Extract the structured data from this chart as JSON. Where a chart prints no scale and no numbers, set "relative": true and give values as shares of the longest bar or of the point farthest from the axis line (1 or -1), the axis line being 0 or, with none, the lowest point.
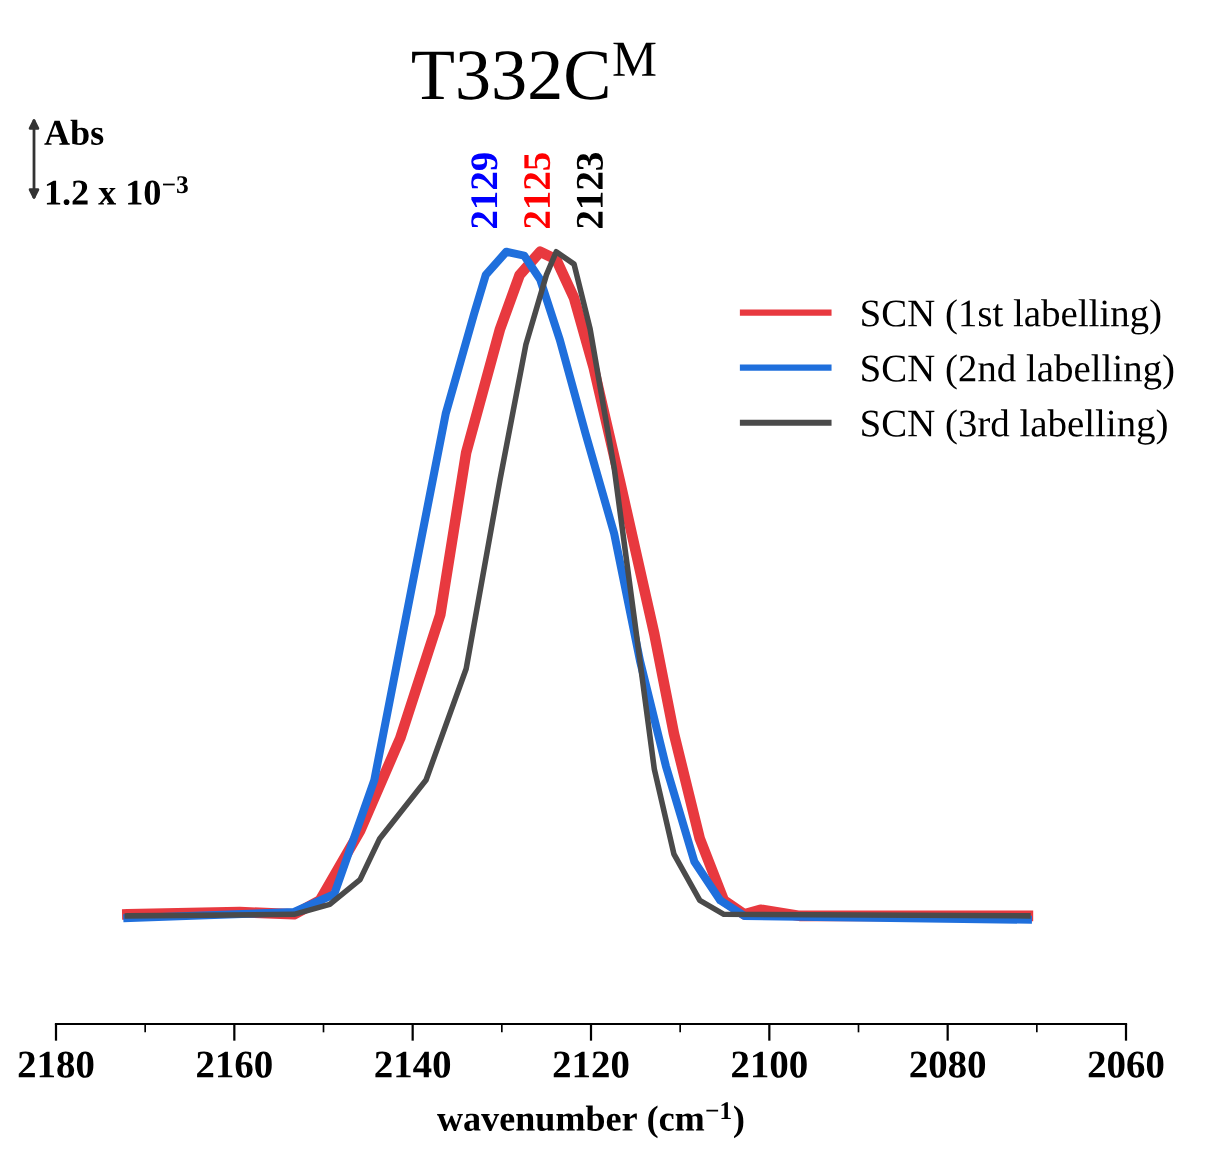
{
  "chart_data": {
    "type": "line",
    "title": "T332C$^{M}$",
    "xlabel": "wavenumber (cm$^{−1}$)",
    "relative": true,
    "xlim": [
      2180,
      2060
    ],
    "xticks": [
      2180,
      2160,
      2140,
      2120,
      2100,
      2080,
      2060
    ],
    "legend": "top right",
    "grid": false,
    "marker": "none",
    "line_style": "solid",
    "annotations": [
      "Abs",
      "1.2 x 10$^{−3}$",
      {
        "text": "2129",
        "x": 2129,
        "y": 1.0
      },
      {
        "text": "2125",
        "x": 2125,
        "y": 1.0
      },
      {
        "text": "2123",
        "x": 2123,
        "y": 1.0
      }
    ],
    "series": [
      {
        "name": "SCN (1st labelling)",
        "color": "#e8393f",
        "x": [
          2172,
          2159.4,
          2153.3,
          2150.4,
          2145.9,
          2141.4,
          2136.9,
          2134.0,
          2130.2,
          2128.0,
          2125.7,
          2123.9,
          2121.9,
          2119.7,
          2116.7,
          2112.9,
          2110.7,
          2107.8,
          2105.1,
          2102.8,
          2101,
          2096.6,
          2071
        ],
        "values": [
          0.142,
          0.145,
          0.142,
          0.16,
          0.25,
          0.37,
          0.53,
          0.74,
          0.9,
          0.97,
          1.0,
          0.99,
          0.94,
          0.85,
          0.7,
          0.505,
          0.376,
          0.24,
          0.16,
          0.142,
          0.148,
          0.14,
          0.14
        ]
      },
      {
        "name": "SCN (2nd labelling)",
        "color": "#1f6fdc",
        "x": [
          2172,
          2153.3,
          2148.8,
          2144.3,
          2139.8,
          2136.3,
          2133.1,
          2131.8,
          2129.5,
          2127.5,
          2125.7,
          2123.5,
          2120.6,
          2117.4,
          2114.5,
          2111.6,
          2108.4,
          2105.5,
          2102.8,
          2071
        ],
        "values": [
          0.137,
          0.145,
          0.168,
          0.316,
          0.583,
          0.79,
          0.92,
          0.97,
          1.0,
          0.995,
          0.964,
          0.886,
          0.764,
          0.635,
          0.47,
          0.334,
          0.21,
          0.16,
          0.14,
          0.135
        ]
      },
      {
        "name": "SCN (3rd labelling)",
        "color": "#4a4a4a",
        "x": [
          2172,
          2153.3,
          2149.3,
          2145.9,
          2143.7,
          2138.5,
          2134.0,
          2130.2,
          2127.3,
          2125.0,
          2123.9,
          2121.9,
          2120.1,
          2117.4,
          2115.2,
          2112.9,
          2110.7,
          2107.8,
          2105.1,
          2071
        ],
        "values": [
          0.14,
          0.142,
          0.155,
          0.187,
          0.24,
          0.316,
          0.46,
          0.705,
          0.88,
          0.97,
          1.0,
          0.984,
          0.9,
          0.72,
          0.53,
          0.33,
          0.22,
          0.16,
          0.142,
          0.14
        ]
      }
    ]
  }
}
